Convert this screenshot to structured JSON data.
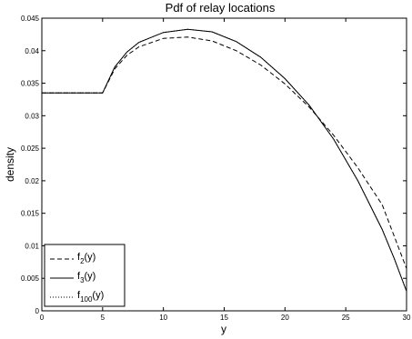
{
  "chart_data": {
    "type": "line",
    "title": "Pdf of relay locations",
    "xlabel": "y",
    "ylabel": "density",
    "xlim": [
      0,
      30
    ],
    "ylim": [
      0,
      0.045
    ],
    "xticks": [
      0,
      5,
      10,
      15,
      20,
      25,
      30
    ],
    "yticks": [
      0,
      0.005,
      0.01,
      0.015,
      0.02,
      0.025,
      0.03,
      0.035,
      0.04,
      0.045
    ],
    "xtick_labels": [
      "0",
      "5",
      "10",
      "15",
      "20",
      "25",
      "30"
    ],
    "ytick_labels": [
      "0",
      "0.005",
      "0.01",
      "0.015",
      "0.02",
      "0.025",
      "0.03",
      "0.035",
      "0.04",
      "0.045"
    ],
    "grid": false,
    "legend_position": "bottom-left",
    "series": [
      {
        "base": "f",
        "subscript": "2",
        "suffix": "(y)",
        "line_style": "dashed",
        "color": "#000000",
        "x": [
          0,
          4.9,
          5,
          6,
          7,
          8,
          10,
          12,
          14,
          16,
          18,
          20,
          22,
          24,
          26,
          28,
          30
        ],
        "y": [
          0.0335,
          0.0335,
          0.0335,
          0.0372,
          0.0393,
          0.0406,
          0.0419,
          0.0421,
          0.0415,
          0.04,
          0.0378,
          0.0349,
          0.0313,
          0.027,
          0.022,
          0.0163,
          0.0065
        ]
      },
      {
        "base": "f",
        "subscript": "3",
        "suffix": "(y)",
        "line_style": "solid",
        "color": "#000000",
        "x": [
          0,
          4.9,
          5,
          6,
          7,
          8,
          10,
          12,
          14,
          16,
          18,
          20,
          22,
          24,
          26,
          28,
          29,
          30
        ],
        "y": [
          0.0335,
          0.0335,
          0.0335,
          0.0375,
          0.0398,
          0.0413,
          0.0428,
          0.0433,
          0.0429,
          0.0414,
          0.039,
          0.0357,
          0.0316,
          0.0264,
          0.02,
          0.0125,
          0.008,
          0.003
        ]
      },
      {
        "base": "f",
        "subscript": "100",
        "suffix": "(y)",
        "line_style": "dotted",
        "color": "#000000",
        "x": [
          0,
          4.9,
          5,
          6,
          7,
          8,
          10,
          12,
          14,
          16,
          18,
          20,
          22,
          24,
          26,
          28,
          29,
          30
        ],
        "y": [
          0.0335,
          0.0335,
          0.0335,
          0.0375,
          0.0398,
          0.0413,
          0.0428,
          0.0433,
          0.0429,
          0.0414,
          0.039,
          0.0357,
          0.0316,
          0.0264,
          0.02,
          0.0125,
          0.008,
          0.003
        ]
      }
    ]
  }
}
